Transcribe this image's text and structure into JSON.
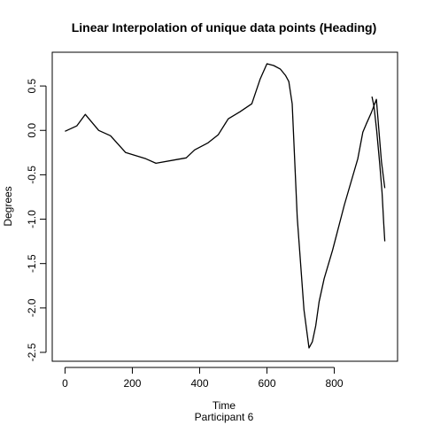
{
  "chart_data": {
    "type": "line",
    "title": "Linear Interpolation of unique data points (Heading)",
    "xlabel": "Time",
    "xlabel2": "Participant  6",
    "ylabel": "Degrees",
    "xlim": [
      -38,
      988
    ],
    "ylim": [
      -2.6,
      0.88
    ],
    "x_ticks": [
      0,
      200,
      400,
      600,
      800
    ],
    "x_tick_labels": [
      "0",
      "200",
      "400",
      "600",
      "800"
    ],
    "y_ticks": [
      -2.5,
      -2.0,
      -1.5,
      -1.0,
      -0.5,
      0.0,
      0.5
    ],
    "y_tick_labels": [
      "-2.5",
      "-2.0",
      "-1.5",
      "-1.0",
      "-0.5",
      "0.0",
      "0.5"
    ],
    "grid": false,
    "series": [
      {
        "color": "#000000",
        "x": [
          0,
          35,
          60,
          100,
          135,
          180,
          240,
          270,
          330,
          360,
          385,
          425,
          455,
          485,
          520,
          555,
          580,
          600,
          620,
          640,
          655,
          665,
          675,
          690,
          710,
          725,
          735,
          745,
          755,
          770,
          795,
          830,
          870,
          885,
          895,
          910,
          925,
          940,
          950
        ],
        "y": [
          -0.01,
          0.05,
          0.18,
          0.0,
          -0.06,
          -0.25,
          -0.32,
          -0.37,
          -0.33,
          -0.31,
          -0.22,
          -0.14,
          -0.05,
          0.13,
          0.21,
          0.3,
          0.58,
          0.75,
          0.73,
          0.69,
          0.62,
          0.55,
          0.3,
          -0.98,
          -2.02,
          -2.45,
          -2.38,
          -2.2,
          -1.93,
          -1.67,
          -1.35,
          -0.84,
          -0.32,
          -0.02,
          0.07,
          0.2,
          0.35,
          -0.35,
          -0.65
        ]
      },
      {
        "color": "#000000",
        "x": [
          912,
          918,
          926,
          935,
          942,
          947,
          950
        ],
        "y": [
          0.38,
          0.27,
          0.0,
          -0.38,
          -0.7,
          -1.05,
          -1.25
        ]
      }
    ]
  }
}
